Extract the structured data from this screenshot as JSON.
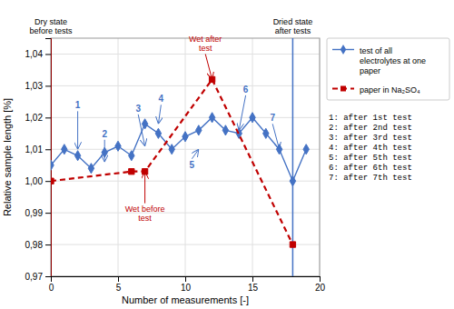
{
  "chart_data": {
    "type": "line",
    "xlabel": "Number of measurements [-]",
    "ylabel": "Relative sample length [%]",
    "xlim": [
      0,
      20
    ],
    "ylim": [
      0.97,
      1.045
    ],
    "xticks": [
      0,
      5,
      10,
      15,
      20
    ],
    "yticks": [
      {
        "value": 0.97,
        "label": "0,97"
      },
      {
        "value": 0.98,
        "label": "0,98"
      },
      {
        "value": 0.99,
        "label": "0,99"
      },
      {
        "value": 1.0,
        "label": "1,00"
      },
      {
        "value": 1.01,
        "label": "1,01"
      },
      {
        "value": 1.02,
        "label": "1,02"
      },
      {
        "value": 1.03,
        "label": "1,03"
      },
      {
        "value": 1.04,
        "label": "1,04"
      }
    ],
    "grid": true,
    "legend": "right",
    "series": [
      {
        "name": "test of all\nelectrolytes at one\npaper",
        "color": "#4472C4",
        "marker": "diamond",
        "line_style": "solid",
        "x": [
          0,
          1,
          2,
          3,
          4,
          5,
          6,
          7,
          8,
          9,
          10,
          11,
          12,
          13,
          14,
          15,
          16,
          17,
          18,
          19
        ],
        "values": [
          1.005,
          1.01,
          1.008,
          1.004,
          1.009,
          1.011,
          1.008,
          1.018,
          1.015,
          1.01,
          1.014,
          1.016,
          1.02,
          1.016,
          1.015,
          1.02,
          1.015,
          1.01,
          1.0,
          1.01
        ]
      },
      {
        "name": "paper in Na₂SO₄",
        "color": "#C00000",
        "marker": "square",
        "line_style": "dashed",
        "x": [
          0,
          6,
          7,
          12,
          18
        ],
        "values": [
          1.0,
          1.003,
          1.003,
          1.032,
          0.98
        ]
      }
    ],
    "vlines": [
      {
        "x": 0,
        "color": "#C00000"
      },
      {
        "x": 18,
        "color": "#4472C4"
      }
    ],
    "annotations": [
      {
        "text": "1",
        "x": 2.0,
        "y": 1.022,
        "target_x": 2,
        "target_y": 1.01,
        "color": "#4472C4"
      },
      {
        "text": "2",
        "x": 4.0,
        "y": 1.013,
        "target_x": 4,
        "target_y": 1.006,
        "color": "#4472C4"
      },
      {
        "text": "3",
        "x": 6.5,
        "y": 1.021,
        "target_x": 7,
        "target_y": 1.011,
        "color": "#4472C4"
      },
      {
        "text": "4",
        "x": 8.2,
        "y": 1.024,
        "target_x": 8,
        "target_y": 1.018,
        "color": "#4472C4"
      },
      {
        "text": "5",
        "x": 10.5,
        "y": 1.007,
        "target_x": 11,
        "target_y": 1.01,
        "color": "#4472C4"
      },
      {
        "text": "6",
        "x": 14.5,
        "y": 1.027,
        "target_x": 14,
        "target_y": 1.016,
        "color": "#4472C4"
      },
      {
        "text": "7",
        "x": 16.5,
        "y": 1.018,
        "target_x": 17,
        "target_y": 1.01,
        "color": "#4472C4"
      },
      {
        "text": "Dry state\nbefore tests",
        "x": 0,
        "y": 1.0455,
        "color": "#000000"
      },
      {
        "text": "Dried state\nafter tests",
        "x": 18,
        "y": 1.0455,
        "color": "#000000"
      },
      {
        "text": "Wet after\ntest",
        "x": 11.5,
        "y": 1.04,
        "target_x": 12,
        "target_y": 1.032,
        "color": "#C00000"
      },
      {
        "text": "Wet before\ntest",
        "x": 7,
        "y": 0.993,
        "target_x": 7,
        "target_y": 1.003,
        "color": "#C00000"
      }
    ],
    "notes": [
      "1: after 1st test",
      "2: after 2nd test",
      "3: after 3rd test",
      "4: after 4th test",
      "5: after 5th test",
      "6: after 6th test",
      "7: after 7th test"
    ]
  }
}
